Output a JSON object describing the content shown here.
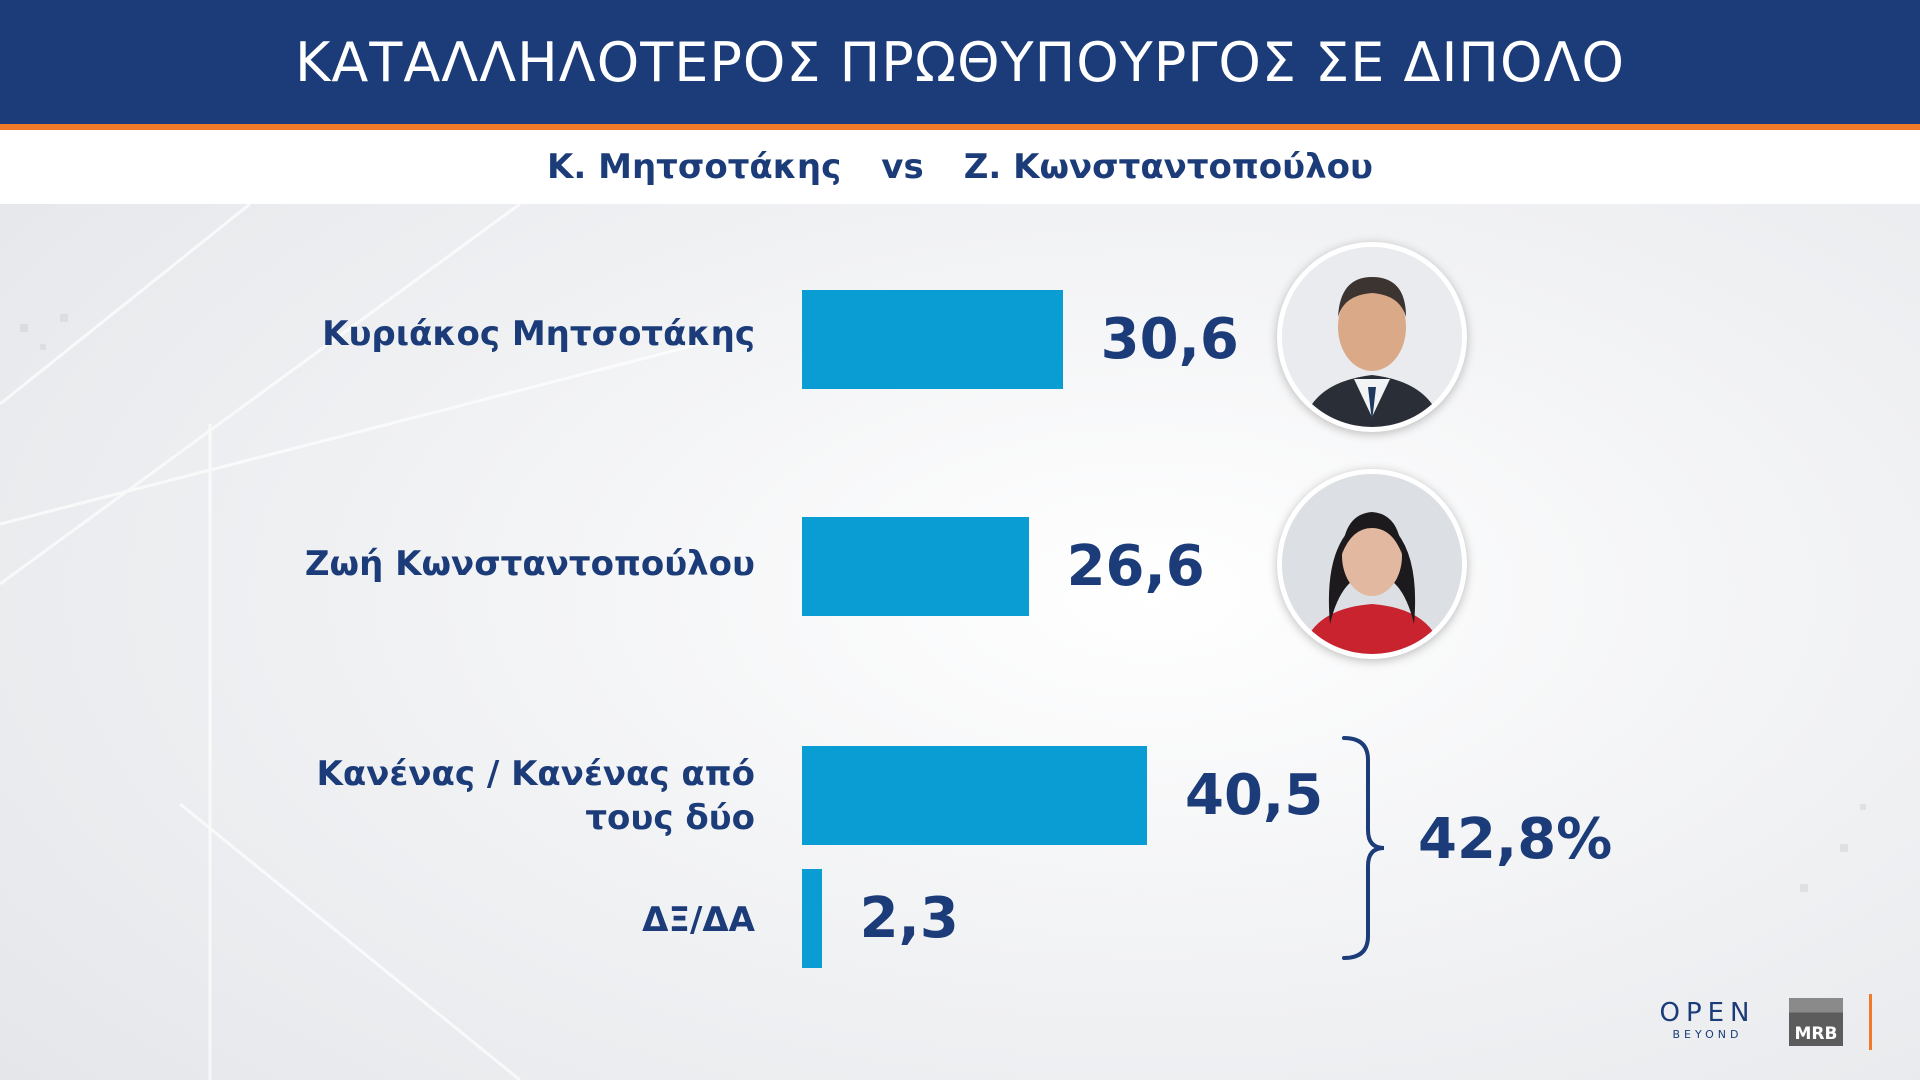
{
  "header": {
    "title": "ΚΑΤΑΛΛΗΛΟΤΕΡΟΣ ΠΡΩΘΥΠΟΥΡΓΟΣ ΣΕ ΔΙΠΟΛΟ",
    "subtitle_left": "Κ. Μητσοτάκης",
    "subtitle_vs": "vs",
    "subtitle_right": "Ζ. Κωνσταντοπούλου"
  },
  "chart_data": {
    "type": "bar",
    "orientation": "horizontal",
    "categories": [
      "Κυριάκος Μητσοτάκης",
      "Ζωή Κωνσταντοπούλου",
      "Κανένας / Κανένας από τους δύο",
      "ΔΞ/ΔΑ"
    ],
    "values": [
      30.6,
      26.6,
      40.5,
      2.3
    ],
    "value_labels": [
      "30,6",
      "26,6",
      "40,5",
      "2,3"
    ],
    "bar_color": "#0a9dd3",
    "group_total": {
      "categories": [
        "Κανένας / Κανένας από τους δύο",
        "ΔΞ/ΔΑ"
      ],
      "value": 42.8,
      "label": "42,8%"
    },
    "title": "ΚΑΤΑΛΛΗΛΟΤΕΡΟΣ ΠΡΩΘΥΠΟΥΡΓΟΣ ΣΕ ΔΙΠΟΛΟ",
    "xlabel": "",
    "ylabel": "",
    "xlim": [
      0,
      40.5
    ],
    "grid": false,
    "legend": "none"
  },
  "labels": {
    "cat3_line1": "Κανένας / Κανένας από",
    "cat3_line2": "τους δύο"
  },
  "logos": {
    "open_main": "OPEN",
    "open_sub": "BEYOND",
    "mrb": "MRB"
  },
  "colors": {
    "header_bg": "#1b3c79",
    "accent_orange": "#f07a2a",
    "text_navy": "#1b3c79",
    "bar": "#0a9dd3"
  }
}
